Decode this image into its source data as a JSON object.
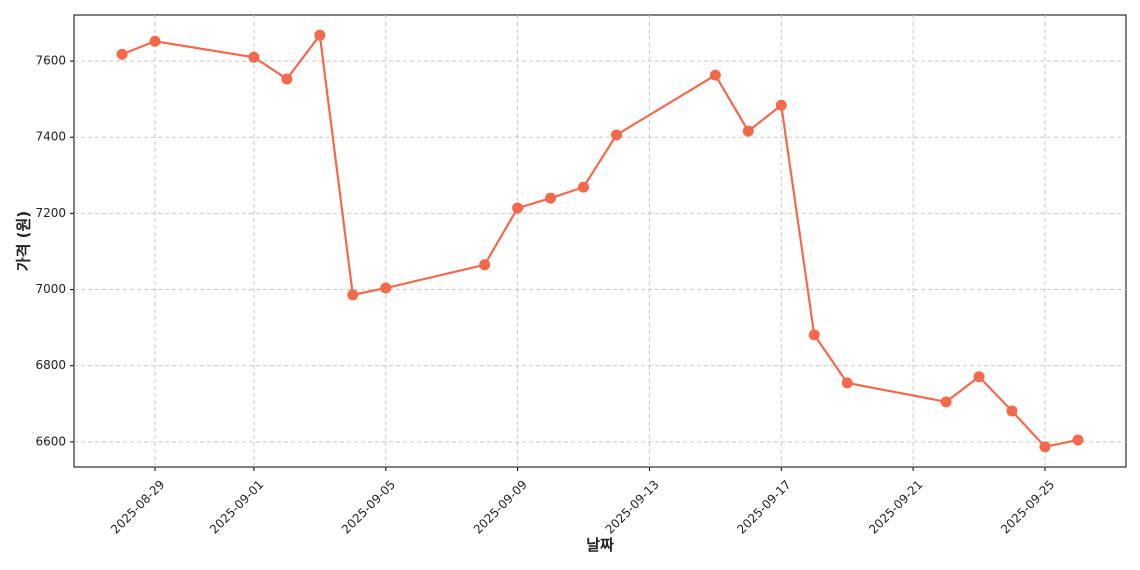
{
  "chart_data": {
    "type": "line",
    "x_label": "날짜",
    "y_label": "가격 (원)",
    "x": [
      "2025-08-28",
      "2025-08-29",
      "2025-09-01",
      "2025-09-02",
      "2025-09-03",
      "2025-09-04",
      "2025-09-05",
      "2025-09-08",
      "2025-09-09",
      "2025-09-10",
      "2025-09-11",
      "2025-09-12",
      "2025-09-15",
      "2025-09-16",
      "2025-09-17",
      "2025-09-18",
      "2025-09-19",
      "2025-09-22",
      "2025-09-23",
      "2025-09-24",
      "2025-09-25",
      "2025-09-26"
    ],
    "series": [
      {
        "color": "#f4694c",
        "values": [
          7618,
          7652,
          7610,
          7553,
          7668,
          6986,
          7004,
          7065,
          7214,
          7240,
          7269,
          7406,
          7563,
          7416,
          7484,
          6881,
          6755,
          6705,
          6771,
          6681,
          6587,
          6605
        ]
      }
    ],
    "xlim": [
      "2025-08-26T13:00",
      "2025-09-27T11:00"
    ],
    "xticks": [
      "2025-08-29",
      "2025-09-01",
      "2025-09-05",
      "2025-09-09",
      "2025-09-13",
      "2025-09-17",
      "2025-09-21",
      "2025-09-25"
    ],
    "ylim": [
      6534,
      7721
    ],
    "yticks": [
      6600,
      6800,
      7000,
      7200,
      7400,
      7600
    ],
    "grid": true
  }
}
